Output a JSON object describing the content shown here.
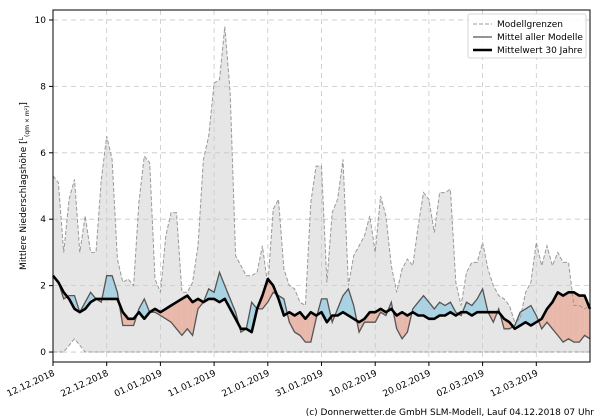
{
  "chart_data": {
    "type": "line",
    "ylabel": "Mittlere Niederschlagshöhe",
    "ylabel_unit_num": "L",
    "ylabel_unit_den": "(qm × m²)",
    "ylim": [
      -0.3,
      10.3
    ],
    "yticks": [
      0,
      2,
      4,
      6,
      8,
      10
    ],
    "x_start": 0,
    "x_end": 100,
    "xticks": [
      {
        "x": 0,
        "label": "12.12.2018"
      },
      {
        "x": 10,
        "label": "22.12.2018"
      },
      {
        "x": 20,
        "label": "01.01.2019"
      },
      {
        "x": 30,
        "label": "11.01.2019"
      },
      {
        "x": 40,
        "label": "21.01.2019"
      },
      {
        "x": 50,
        "label": "31.01.2019"
      },
      {
        "x": 60,
        "label": "10.02.2019"
      },
      {
        "x": 70,
        "label": "20.02.2019"
      },
      {
        "x": 80,
        "label": "02.03.2019"
      },
      {
        "x": 90,
        "label": "12.03.2019"
      }
    ],
    "legend": {
      "position": "top-right",
      "entries": [
        "Modellgrenzen",
        "Mittel aller Modelle",
        "Mittelwert 30 Jahre"
      ]
    },
    "upper_x": [
      0,
      1,
      2,
      3,
      4,
      5,
      6,
      7,
      8,
      9,
      10,
      11,
      12,
      13,
      14,
      15,
      16,
      17,
      18,
      19,
      20,
      21,
      22,
      23,
      24,
      25,
      26,
      27,
      28,
      29,
      30,
      31,
      32,
      33,
      34,
      35,
      36,
      37,
      38,
      39,
      40,
      41,
      42,
      43,
      44,
      45,
      46,
      47,
      48,
      49,
      50,
      51,
      52,
      53,
      54,
      55,
      56,
      57,
      58,
      59,
      60,
      61,
      62,
      63,
      64,
      65,
      66,
      67,
      68,
      69,
      70,
      71,
      72,
      73,
      74,
      75,
      76,
      77,
      78,
      79,
      80,
      81,
      82,
      83,
      84,
      85,
      86,
      87,
      88,
      89,
      90,
      91,
      92,
      93,
      94,
      95,
      96,
      97,
      98,
      99,
      100
    ],
    "upper_y": [
      5.3,
      5.1,
      3.0,
      4.6,
      5.2,
      3.0,
      4.1,
      3.0,
      3.0,
      5.2,
      6.5,
      5.8,
      2.8,
      2.1,
      2.2,
      2.0,
      4.5,
      5.9,
      5.7,
      2.2,
      1.8,
      3.5,
      4.2,
      4.2,
      1.8,
      1.8,
      2.1,
      3.2,
      5.8,
      6.5,
      8.1,
      8.2,
      9.8,
      7.8,
      2.9,
      2.6,
      2.3,
      2.3,
      2.4,
      3.2,
      2.0,
      4.3,
      4.6,
      2.5,
      2.0,
      1.9,
      1.5,
      1.4,
      4.5,
      5.6,
      5.6,
      2.1,
      4.2,
      4.6,
      5.8,
      2.0,
      2.9,
      3.2,
      3.5,
      4.1,
      3.0,
      4.7,
      4.1,
      2.6,
      1.8,
      2.5,
      2.8,
      2.6,
      3.8,
      4.8,
      4.6,
      3.6,
      4.8,
      4.8,
      4.9,
      2.1,
      1.4,
      2.4,
      2.7,
      2.7,
      3.3,
      2.5,
      2.0,
      1.7,
      1.6,
      1.4,
      0.9,
      1.0,
      1.8,
      2.1,
      3.3,
      2.6,
      3.2,
      2.6,
      3.0,
      2.7,
      2.7,
      1.4,
      1.4,
      1.3,
      1.4
    ],
    "lower_x": [
      0,
      2,
      4,
      6,
      8,
      10,
      12,
      14,
      16,
      18,
      20,
      22,
      24,
      26,
      28,
      30,
      32,
      34,
      36,
      38,
      40,
      42,
      44,
      46,
      48,
      50,
      52,
      54,
      56,
      58,
      60,
      62,
      64,
      66,
      68,
      70,
      72,
      74,
      76,
      78,
      80,
      82,
      84,
      86,
      88,
      90,
      92,
      94,
      96,
      98,
      100
    ],
    "lower_y": [
      0.0,
      0.0,
      0.4,
      0.0,
      0.0,
      0.0,
      0.0,
      0.0,
      0.0,
      0.0,
      0.0,
      0.0,
      0.0,
      0.0,
      0.0,
      0.0,
      0.0,
      0.0,
      0.0,
      0.0,
      0.0,
      0.0,
      0.0,
      0.0,
      0.0,
      0.0,
      0.0,
      0.0,
      0.0,
      0.0,
      0.0,
      0.0,
      0.0,
      0.0,
      0.0,
      0.0,
      0.0,
      0.0,
      0.0,
      0.0,
      0.0,
      0.0,
      0.0,
      0.0,
      0.0,
      0.0,
      0.0,
      0.0,
      0.0,
      0.0,
      0.0
    ],
    "model_mean": [
      2.3,
      2.1,
      1.6,
      1.7,
      1.7,
      1.2,
      1.5,
      1.8,
      1.6,
      1.5,
      2.3,
      2.3,
      1.8,
      0.8,
      0.8,
      0.8,
      1.3,
      1.6,
      1.2,
      1.2,
      1.1,
      1.0,
      0.9,
      0.7,
      0.5,
      0.7,
      0.5,
      1.3,
      1.5,
      1.9,
      1.8,
      2.4,
      2.0,
      1.6,
      1.2,
      0.6,
      0.7,
      1.5,
      1.3,
      1.3,
      1.5,
      1.8,
      1.7,
      1.6,
      0.9,
      0.6,
      0.5,
      0.3,
      0.3,
      1.0,
      1.6,
      1.6,
      0.9,
      1.3,
      1.7,
      1.9,
      1.4,
      0.6,
      0.9,
      0.9,
      0.9,
      1.2,
      1.1,
      1.5,
      0.7,
      0.4,
      0.6,
      1.3,
      1.5,
      1.7,
      1.5,
      1.3,
      1.5,
      1.4,
      1.5,
      1.2,
      1.1,
      1.5,
      1.4,
      1.6,
      1.9,
      1.2,
      0.9,
      1.3,
      0.7,
      0.7,
      0.8,
      1.2,
      1.3,
      1.4,
      1.1,
      0.7,
      0.9,
      0.7,
      0.5,
      0.3,
      0.4,
      0.3,
      0.3,
      0.5,
      0.4
    ],
    "climate_mean": [
      2.3,
      2.1,
      1.8,
      1.6,
      1.3,
      1.2,
      1.3,
      1.5,
      1.6,
      1.6,
      1.6,
      1.6,
      1.6,
      1.2,
      1.0,
      1.0,
      1.2,
      1.0,
      1.2,
      1.3,
      1.2,
      1.3,
      1.4,
      1.5,
      1.6,
      1.7,
      1.5,
      1.6,
      1.5,
      1.6,
      1.6,
      1.5,
      1.6,
      1.3,
      1.0,
      0.7,
      0.7,
      0.6,
      1.3,
      1.7,
      2.2,
      2.0,
      1.6,
      1.1,
      1.2,
      1.1,
      1.2,
      1.0,
      1.2,
      1.1,
      1.2,
      0.9,
      1.1,
      1.1,
      1.2,
      1.1,
      1.0,
      0.9,
      1.0,
      1.2,
      1.2,
      1.3,
      1.2,
      1.3,
      1.1,
      1.2,
      1.1,
      1.2,
      1.1,
      1.1,
      1.0,
      1.0,
      1.1,
      1.1,
      1.2,
      1.1,
      1.2,
      1.2,
      1.1,
      1.2,
      1.2,
      1.2,
      1.2,
      1.2,
      1.0,
      0.9,
      0.7,
      0.8,
      0.9,
      0.8,
      0.9,
      1.0,
      1.3,
      1.5,
      1.8,
      1.7,
      1.8,
      1.8,
      1.7,
      1.7,
      1.3
    ]
  },
  "credit": "(c) Donnerwetter.de GmbH SLM-Modell, Lauf 04.12.2018 07 Uhr",
  "colors": {
    "band_fill": "#e6e6e6",
    "band_line": "#999999",
    "above": "#a9d3e3",
    "below": "#e8b8aa",
    "below_light": "#f2d2cc",
    "model_line": "#555555",
    "climate_line": "#000000",
    "grid": "#c8c8c8"
  }
}
